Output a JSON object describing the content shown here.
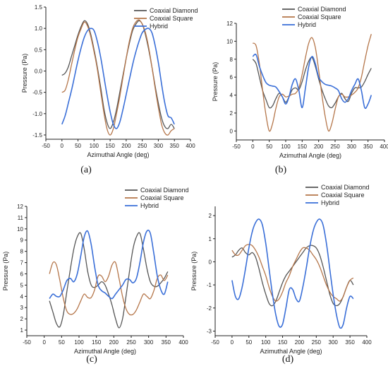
{
  "series_colors": {
    "Coaxial Diamond": "#555555",
    "Coaxial Square": "#b5764a",
    "Hybrid": "#3a6fd8"
  },
  "chart_data": [
    {
      "type": "line",
      "panel": "(a)",
      "xlabel": "Azimuthal Angle (deg)",
      "ylabel": "Pressure (Pa)",
      "xlim": [
        -50,
        400
      ],
      "ylim": [
        -1.6,
        1.5
      ],
      "xticks": [
        -50,
        0,
        50,
        100,
        150,
        200,
        250,
        300,
        350,
        400
      ],
      "yticks": [
        -1.5,
        -1.0,
        -0.5,
        0.0,
        0.5,
        1.0,
        1.5
      ],
      "yticklabels": [
        "-1.5",
        "-1.0",
        "-0.5",
        "0.0",
        "0.5",
        "1.0",
        "1.5"
      ],
      "legend": "top-right",
      "series": [
        {
          "name": "Coaxial Diamond",
          "x": [
            0,
            10,
            20,
            30,
            40,
            50,
            60,
            70,
            80,
            90,
            100,
            110,
            120,
            130,
            140,
            150,
            160,
            170,
            180,
            190,
            200,
            210,
            220,
            230,
            240,
            250,
            260,
            270,
            280,
            290,
            300,
            310,
            320,
            330,
            340,
            350
          ],
          "y": [
            -0.1,
            -0.05,
            0.1,
            0.35,
            0.6,
            0.85,
            1.05,
            1.18,
            1.1,
            0.85,
            0.5,
            0.1,
            -0.35,
            -0.85,
            -1.2,
            -1.35,
            -1.2,
            -0.9,
            -0.5,
            -0.1,
            0.3,
            0.65,
            0.95,
            1.1,
            1.18,
            1.1,
            0.85,
            0.5,
            0.1,
            -0.35,
            -0.75,
            -1.1,
            -1.3,
            -1.35,
            -1.25,
            -1.35
          ]
        },
        {
          "name": "Coaxial Square",
          "x": [
            0,
            10,
            20,
            30,
            40,
            50,
            60,
            70,
            80,
            90,
            100,
            110,
            120,
            130,
            140,
            150,
            160,
            170,
            180,
            190,
            200,
            210,
            220,
            230,
            240,
            250,
            260,
            270,
            280,
            290,
            300,
            310,
            320,
            330,
            340,
            350
          ],
          "y": [
            -0.5,
            -0.45,
            -0.2,
            0.15,
            0.5,
            0.8,
            1.0,
            1.15,
            1.05,
            0.8,
            0.45,
            0.05,
            -0.45,
            -0.95,
            -1.35,
            -1.5,
            -1.35,
            -1.0,
            -0.6,
            -0.15,
            0.3,
            0.7,
            1.0,
            1.15,
            1.2,
            1.1,
            0.9,
            0.55,
            0.1,
            -0.4,
            -0.85,
            -1.25,
            -1.45,
            -1.5,
            -1.4,
            -1.35
          ]
        },
        {
          "name": "Hybrid",
          "x": [
            0,
            10,
            20,
            30,
            40,
            50,
            60,
            70,
            80,
            90,
            100,
            110,
            120,
            130,
            140,
            150,
            160,
            170,
            180,
            190,
            200,
            210,
            220,
            230,
            240,
            250,
            260,
            270,
            280,
            290,
            300,
            310,
            320,
            330,
            340,
            350
          ],
          "y": [
            -1.25,
            -1.05,
            -0.75,
            -0.45,
            -0.1,
            0.25,
            0.55,
            0.8,
            0.95,
            1.0,
            0.95,
            0.7,
            0.35,
            -0.1,
            -0.55,
            -0.95,
            -1.25,
            -1.35,
            -1.2,
            -0.9,
            -0.55,
            -0.2,
            0.15,
            0.45,
            0.7,
            0.9,
            0.98,
            1.0,
            0.9,
            0.6,
            0.2,
            -0.3,
            -0.75,
            -1.05,
            -1.1,
            -1.25
          ]
        }
      ]
    },
    {
      "type": "line",
      "panel": "(b)",
      "xlabel": "Azimuthal Angle (deg)",
      "ylabel": "Pressure (Pa)",
      "xlim": [
        -50,
        400
      ],
      "ylim": [
        -1,
        12
      ],
      "xticks": [
        -50,
        0,
        50,
        100,
        150,
        200,
        250,
        300,
        350,
        400
      ],
      "yticks": [
        0,
        2,
        4,
        6,
        8,
        10,
        12
      ],
      "yticklabels": [
        "0",
        "2",
        "4",
        "6",
        "8",
        "10",
        "12"
      ],
      "legend": "top-right",
      "series": [
        {
          "name": "Coaxial Diamond",
          "x": [
            0,
            10,
            20,
            30,
            40,
            50,
            60,
            70,
            80,
            90,
            100,
            110,
            120,
            130,
            140,
            150,
            160,
            170,
            180,
            190,
            200,
            210,
            220,
            230,
            240,
            250,
            260,
            270,
            280,
            290,
            300,
            310,
            320,
            330,
            340,
            350,
            360
          ],
          "y": [
            8.0,
            7.5,
            6.0,
            4.5,
            3.5,
            2.6,
            2.8,
            3.6,
            4.2,
            3.8,
            3.2,
            3.8,
            4.6,
            4.8,
            4.6,
            5.5,
            6.8,
            7.8,
            8.2,
            7.2,
            5.8,
            4.6,
            3.6,
            2.8,
            2.6,
            3.1,
            3.8,
            4.2,
            3.6,
            3.3,
            4.2,
            4.8,
            4.8,
            4.9,
            5.5,
            6.3,
            7.0
          ]
        },
        {
          "name": "Coaxial Square",
          "x": [
            0,
            10,
            20,
            30,
            40,
            50,
            60,
            70,
            80,
            90,
            100,
            110,
            120,
            130,
            140,
            150,
            160,
            170,
            180,
            190,
            200,
            210,
            220,
            230,
            240,
            250,
            260,
            270,
            280,
            290,
            300,
            310,
            320,
            330,
            340,
            350,
            360
          ],
          "y": [
            9.8,
            9.5,
            7.5,
            4.5,
            1.8,
            0.0,
            0.8,
            2.5,
            3.8,
            4.1,
            3.8,
            3.9,
            4.1,
            4.2,
            4.8,
            6.3,
            8.2,
            9.8,
            10.4,
            9.3,
            6.8,
            4.0,
            1.6,
            0.0,
            0.8,
            2.4,
            3.8,
            4.1,
            3.8,
            3.8,
            4.0,
            4.3,
            4.8,
            6.0,
            7.8,
            9.5,
            10.8
          ]
        },
        {
          "name": "Hybrid",
          "x": [
            0,
            10,
            20,
            30,
            40,
            50,
            60,
            70,
            80,
            90,
            100,
            110,
            120,
            130,
            140,
            150,
            160,
            170,
            180,
            190,
            200,
            210,
            220,
            230,
            240,
            250,
            260,
            270,
            280,
            290,
            300,
            310,
            320,
            330,
            340,
            350,
            360
          ],
          "y": [
            8.3,
            8.5,
            7.2,
            6.2,
            5.4,
            5.1,
            5.0,
            4.9,
            4.4,
            3.8,
            3.0,
            3.8,
            5.2,
            5.8,
            4.5,
            2.6,
            4.8,
            7.2,
            8.3,
            7.5,
            6.0,
            5.5,
            5.2,
            5.1,
            5.0,
            4.8,
            4.5,
            3.6,
            3.2,
            3.6,
            4.5,
            5.2,
            5.8,
            4.5,
            2.6,
            3.0,
            4.0
          ]
        }
      ]
    },
    {
      "type": "line",
      "panel": "(c)",
      "xlabel": "Azimuthal Angle (deg)",
      "ylabel": "Pressure (Pa)",
      "xlim": [
        -50,
        400
      ],
      "ylim": [
        0.5,
        12
      ],
      "xticks": [
        -50,
        0,
        50,
        100,
        150,
        200,
        250,
        300,
        350,
        400
      ],
      "yticks": [
        1,
        2,
        3,
        4,
        5,
        6,
        7,
        8,
        9,
        10,
        11,
        12
      ],
      "yticklabels": [
        "1",
        "2",
        "3",
        "4",
        "5",
        "6",
        "7",
        "8",
        "9",
        "10",
        "11",
        "12"
      ],
      "legend": "top-right",
      "series": [
        {
          "name": "Coaxial Diamond",
          "x": [
            15,
            25,
            35,
            45,
            55,
            65,
            75,
            85,
            95,
            105,
            115,
            125,
            135,
            145,
            155,
            165,
            175,
            185,
            195,
            205,
            215,
            225,
            235,
            245,
            255,
            265,
            275,
            285,
            295,
            305,
            315,
            325,
            335,
            345,
            355
          ],
          "y": [
            3.6,
            2.6,
            1.6,
            1.3,
            2.4,
            4.4,
            6.4,
            8.2,
            9.3,
            9.6,
            8.2,
            6.2,
            5.0,
            4.8,
            5.0,
            5.3,
            5.0,
            4.2,
            3.2,
            2.0,
            1.2,
            2.0,
            4.0,
            6.2,
            8.2,
            9.3,
            9.6,
            8.2,
            6.5,
            5.3,
            4.9,
            4.9,
            5.2,
            5.6,
            6.2
          ]
        },
        {
          "name": "Coaxial Square",
          "x": [
            15,
            25,
            35,
            45,
            55,
            65,
            75,
            85,
            95,
            105,
            115,
            125,
            135,
            145,
            155,
            165,
            175,
            185,
            195,
            205,
            215,
            225,
            235,
            245,
            255,
            265,
            275,
            285,
            295,
            305,
            315,
            325,
            335,
            345,
            355
          ],
          "y": [
            6.0,
            7.0,
            6.8,
            5.4,
            3.8,
            2.7,
            2.4,
            2.5,
            2.9,
            3.6,
            4.2,
            3.9,
            3.9,
            4.6,
            5.8,
            5.8,
            5.3,
            5.8,
            6.8,
            7.0,
            5.6,
            4.0,
            2.9,
            2.4,
            2.4,
            2.8,
            3.5,
            4.2,
            4.0,
            3.8,
            4.5,
            5.6,
            5.9,
            5.4,
            5.9
          ]
        },
        {
          "name": "Hybrid",
          "x": [
            15,
            25,
            35,
            45,
            55,
            65,
            75,
            85,
            95,
            105,
            115,
            125,
            135,
            145,
            155,
            165,
            175,
            185,
            195,
            205,
            215,
            225,
            235,
            245,
            255,
            265,
            275,
            285,
            295,
            305,
            315,
            325,
            335,
            345,
            355
          ],
          "y": [
            3.8,
            4.2,
            4.0,
            4.0,
            4.6,
            5.4,
            5.6,
            5.3,
            6.0,
            7.6,
            9.3,
            9.8,
            8.6,
            6.6,
            5.0,
            4.5,
            4.3,
            4.0,
            3.8,
            4.2,
            4.6,
            5.0,
            5.5,
            5.5,
            5.2,
            5.6,
            7.0,
            8.8,
            9.8,
            9.6,
            7.8,
            5.8,
            4.6,
            4.2,
            5.3
          ]
        }
      ]
    },
    {
      "type": "line",
      "panel": "(d)",
      "xlabel": "Azimuthal Angle (deg)",
      "ylabel": "Pressure (Pa)",
      "xlim": [
        -50,
        400
      ],
      "ylim": [
        -3.2,
        2.4
      ],
      "xticks": [
        -50,
        0,
        50,
        100,
        150,
        200,
        250,
        300,
        350,
        400
      ],
      "yticks": [
        -3,
        -2,
        -1,
        0,
        1,
        2
      ],
      "yticklabels": [
        "-3",
        "-2",
        "-1",
        "0",
        "1",
        "2"
      ],
      "legend": "top-right",
      "series": [
        {
          "name": "Coaxial Diamond",
          "x": [
            0,
            10,
            20,
            30,
            40,
            50,
            60,
            70,
            80,
            90,
            100,
            110,
            120,
            130,
            140,
            150,
            160,
            170,
            180,
            190,
            200,
            210,
            220,
            230,
            240,
            250,
            260,
            270,
            280,
            290,
            300,
            310,
            320,
            330,
            340,
            350,
            360
          ],
          "y": [
            0.2,
            0.3,
            0.5,
            0.6,
            0.4,
            0.3,
            0.4,
            0.2,
            -0.3,
            -0.9,
            -1.4,
            -1.8,
            -1.9,
            -1.7,
            -1.3,
            -0.9,
            -0.6,
            -0.4,
            -0.2,
            0.0,
            0.2,
            0.4,
            0.6,
            0.7,
            0.7,
            0.6,
            0.3,
            -0.2,
            -0.8,
            -1.4,
            -1.8,
            -1.9,
            -1.8,
            -1.5,
            -1.1,
            -0.8,
            -1.0
          ]
        },
        {
          "name": "Coaxial Square",
          "x": [
            0,
            10,
            20,
            30,
            40,
            50,
            60,
            70,
            80,
            90,
            100,
            110,
            120,
            130,
            140,
            150,
            160,
            170,
            180,
            190,
            200,
            210,
            220,
            230,
            240,
            250,
            260,
            270,
            280,
            290,
            300,
            310,
            320,
            330,
            340,
            350,
            360
          ],
          "y": [
            0.5,
            0.3,
            0.3,
            0.5,
            0.7,
            0.75,
            0.7,
            0.5,
            0.2,
            -0.2,
            -0.6,
            -1.1,
            -1.5,
            -1.7,
            -1.6,
            -1.3,
            -0.9,
            -0.6,
            -0.2,
            0.1,
            0.4,
            0.6,
            0.6,
            0.5,
            0.3,
            0.1,
            -0.2,
            -0.6,
            -1.0,
            -1.3,
            -1.5,
            -1.6,
            -1.7,
            -1.5,
            -1.1,
            -0.8,
            -0.7
          ]
        },
        {
          "name": "Hybrid",
          "x": [
            0,
            10,
            20,
            30,
            40,
            50,
            60,
            70,
            80,
            90,
            100,
            110,
            120,
            130,
            140,
            150,
            160,
            170,
            180,
            190,
            200,
            210,
            220,
            230,
            240,
            250,
            260,
            270,
            280,
            290,
            300,
            310,
            320,
            330,
            340,
            350,
            360
          ],
          "y": [
            -0.8,
            -1.5,
            -1.6,
            -1.1,
            -0.3,
            0.6,
            1.3,
            1.7,
            1.85,
            1.6,
            0.8,
            -0.3,
            -1.4,
            -2.3,
            -2.8,
            -2.7,
            -2.0,
            -1.2,
            -1.2,
            -1.6,
            -1.7,
            -1.1,
            -0.3,
            0.6,
            1.3,
            1.7,
            1.85,
            1.6,
            0.8,
            -0.3,
            -1.4,
            -2.3,
            -2.85,
            -2.7,
            -2.0,
            -1.5,
            -1.6
          ]
        }
      ]
    }
  ]
}
